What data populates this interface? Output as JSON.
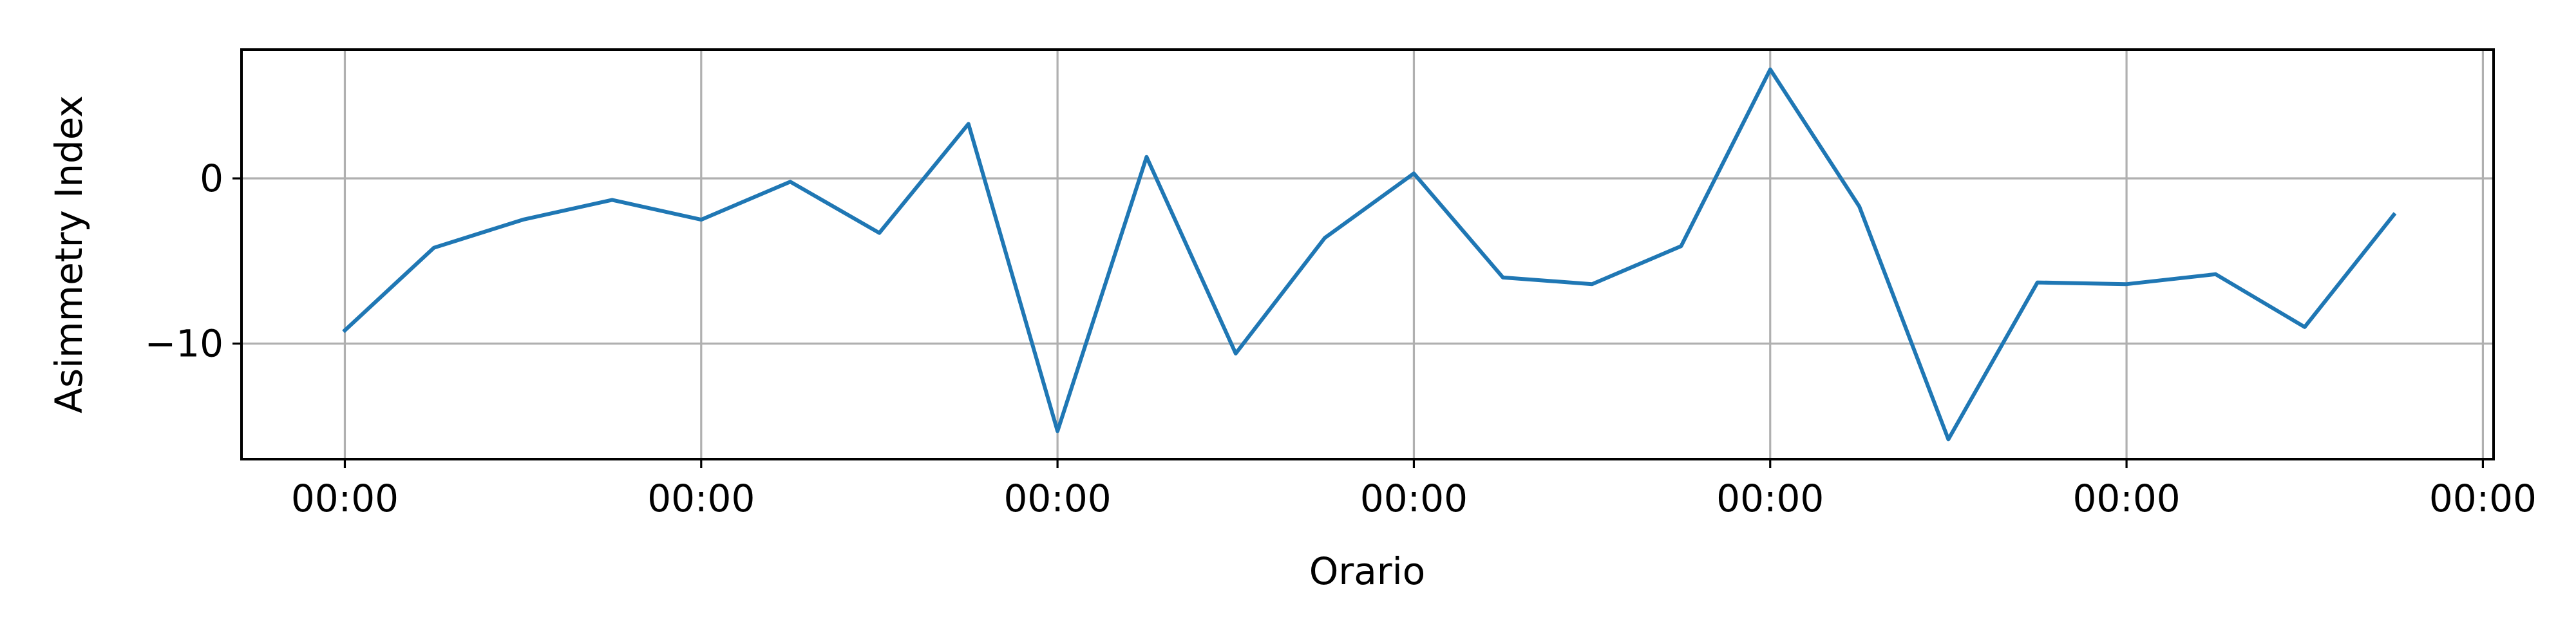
{
  "chart_data": {
    "type": "line",
    "title": "",
    "xlabel": "Orario",
    "ylabel": "Asimmetry Index",
    "grid": true,
    "legend": "none",
    "x_tick_labels": [
      "00:00",
      "00:00",
      "00:00",
      "00:00",
      "00:00",
      "00:00",
      "00:00"
    ],
    "y_ticks": [
      -10,
      0
    ],
    "y_tick_labels": [
      "−10",
      "0"
    ],
    "ylim": [
      -17,
      7.8
    ],
    "x": [
      0,
      0.25,
      0.5,
      0.75,
      1,
      1.25,
      1.5,
      1.75,
      2,
      2.25,
      2.5,
      2.75,
      3,
      3.25,
      3.5,
      3.75,
      4,
      4.25,
      4.5,
      4.75,
      5,
      5.25,
      5.5,
      5.75
    ],
    "xlim": [
      -0.29,
      6.03
    ],
    "series": [
      {
        "name": "",
        "color": "#1f77b4",
        "values": [
          -9.2,
          -4.2,
          -2.5,
          -1.3,
          -2.5,
          -0.2,
          -3.3,
          3.3,
          -15.3,
          1.3,
          -10.6,
          -3.6,
          0.3,
          -6.0,
          -6.4,
          -4.1,
          6.6,
          -1.7,
          -15.8,
          -6.3,
          -6.4,
          -5.8,
          -9.0,
          -2.2
        ]
      }
    ]
  }
}
